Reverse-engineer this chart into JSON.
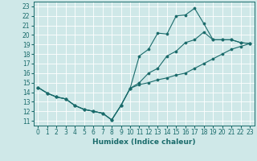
{
  "xlabel": "Humidex (Indice chaleur)",
  "bg_color": "#cfe8e8",
  "line_color": "#1a6b6b",
  "grid_color": "#ffffff",
  "xlim": [
    -0.5,
    23.5
  ],
  "ylim": [
    10.5,
    23.5
  ],
  "xticks": [
    0,
    1,
    2,
    3,
    4,
    5,
    6,
    7,
    8,
    9,
    10,
    11,
    12,
    13,
    14,
    15,
    16,
    17,
    18,
    19,
    20,
    21,
    22,
    23
  ],
  "yticks": [
    11,
    12,
    13,
    14,
    15,
    16,
    17,
    18,
    19,
    20,
    21,
    22,
    23
  ],
  "line1_x": [
    0,
    1,
    2,
    3,
    4,
    5,
    6,
    7,
    8,
    9,
    10,
    11,
    12,
    13,
    14,
    15,
    16,
    17,
    18,
    19,
    20,
    21,
    22,
    23
  ],
  "line1_y": [
    14.5,
    13.9,
    13.5,
    13.3,
    12.6,
    12.2,
    12.0,
    11.8,
    11.1,
    12.6,
    14.4,
    14.8,
    15.0,
    15.3,
    15.5,
    15.8,
    16.0,
    16.5,
    17.0,
    17.5,
    18.0,
    18.5,
    18.8,
    19.1
  ],
  "line2_x": [
    0,
    1,
    2,
    3,
    4,
    5,
    6,
    7,
    8,
    9,
    10,
    11,
    12,
    13,
    14,
    15,
    16,
    17,
    18,
    19,
    20,
    21,
    22,
    23
  ],
  "line2_y": [
    14.5,
    13.9,
    13.5,
    13.3,
    12.6,
    12.2,
    12.0,
    11.8,
    11.1,
    12.6,
    14.4,
    15.0,
    16.0,
    16.5,
    17.8,
    18.3,
    19.2,
    19.5,
    20.3,
    19.5,
    19.5,
    19.5,
    19.2,
    19.1
  ],
  "line3_x": [
    0,
    1,
    2,
    3,
    4,
    5,
    6,
    7,
    8,
    9,
    10,
    11,
    12,
    13,
    14,
    15,
    16,
    17,
    18,
    19,
    20,
    21,
    22,
    23
  ],
  "line3_y": [
    14.5,
    13.9,
    13.5,
    13.3,
    12.6,
    12.2,
    12.0,
    11.8,
    11.1,
    12.6,
    14.4,
    17.8,
    18.5,
    20.2,
    20.1,
    22.0,
    22.1,
    22.8,
    21.2,
    19.5,
    19.5,
    19.5,
    19.2,
    19.1
  ],
  "tick_fontsize": 5.5,
  "xlabel_fontsize": 6.5
}
